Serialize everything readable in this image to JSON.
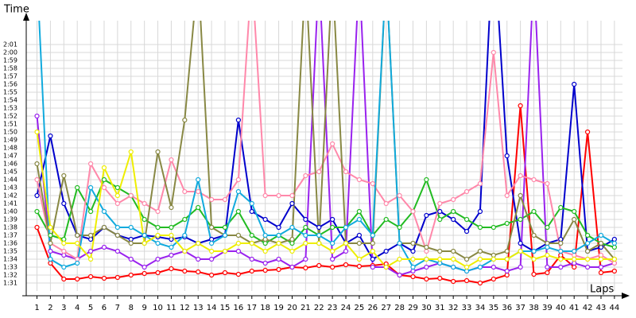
{
  "chart_data": {
    "type": "line",
    "y_label": "Time",
    "x_label": "Laps",
    "x": [
      1,
      2,
      3,
      4,
      5,
      6,
      7,
      8,
      9,
      10,
      11,
      12,
      13,
      14,
      15,
      16,
      17,
      18,
      19,
      20,
      21,
      22,
      23,
      24,
      25,
      26,
      27,
      28,
      29,
      30,
      31,
      32,
      33,
      34,
      35,
      36,
      37,
      38,
      39,
      40,
      41,
      42,
      43,
      44
    ],
    "xticks": [
      1,
      2,
      3,
      4,
      5,
      6,
      7,
      8,
      9,
      10,
      11,
      12,
      13,
      14,
      15,
      16,
      17,
      18,
      19,
      20,
      21,
      22,
      23,
      24,
      25,
      26,
      27,
      28,
      29,
      30,
      31,
      32,
      33,
      34,
      35,
      36,
      37,
      38,
      39,
      40,
      41,
      42,
      43,
      44
    ],
    "xlim": [
      0.2,
      44.6
    ],
    "ylim": [
      90,
      124
    ],
    "yticks": [
      {
        "value": 91,
        "label": "1:31"
      },
      {
        "value": 92,
        "label": "1:32"
      },
      {
        "value": 93,
        "label": "1:33"
      },
      {
        "value": 94,
        "label": "1:34"
      },
      {
        "value": 95,
        "label": "1:35"
      },
      {
        "value": 96,
        "label": "1:36"
      },
      {
        "value": 97,
        "label": "1:37"
      },
      {
        "value": 98,
        "label": "1:38"
      },
      {
        "value": 99,
        "label": "1:39"
      },
      {
        "value": 100,
        "label": "1:40"
      },
      {
        "value": 101,
        "label": "1:41"
      },
      {
        "value": 102,
        "label": "1:42"
      },
      {
        "value": 103,
        "label": "1:43"
      },
      {
        "value": 104,
        "label": "1:44"
      },
      {
        "value": 105,
        "label": "1:45"
      },
      {
        "value": 106,
        "label": "1:46"
      },
      {
        "value": 107,
        "label": "1:47"
      },
      {
        "value": 108,
        "label": "1:48"
      },
      {
        "value": 109,
        "label": "1:49"
      },
      {
        "value": 110,
        "label": "1:50"
      },
      {
        "value": 111,
        "label": "1:51"
      },
      {
        "value": 112,
        "label": "1:52"
      },
      {
        "value": 113,
        "label": "1:53"
      },
      {
        "value": 114,
        "label": "1:54"
      },
      {
        "value": 115,
        "label": "1:55"
      },
      {
        "value": 116,
        "label": "1:56"
      },
      {
        "value": 117,
        "label": "1:57"
      },
      {
        "value": 118,
        "label": "1:58"
      },
      {
        "value": 119,
        "label": "1:59"
      },
      {
        "value": 120,
        "label": "2:00"
      },
      {
        "value": 121,
        "label": "2:01"
      }
    ],
    "grid": true,
    "series": [
      {
        "color": "#ff0000",
        "values": [
          98,
          93.5,
          91.5,
          91.5,
          91.8,
          91.6,
          91.7,
          92,
          92.2,
          92.3,
          92.8,
          92.5,
          92.4,
          92,
          92.3,
          92.1,
          92.5,
          92.6,
          92.7,
          93,
          92.9,
          93.2,
          93,
          93.3,
          93.1,
          93.2,
          93.4,
          92,
          91.8,
          91.5,
          91.6,
          91.2,
          91.3,
          91,
          91.5,
          92,
          113.3,
          92.1,
          92.3,
          94.5,
          93,
          110,
          92.3,
          92.5
        ]
      },
      {
        "color": "#0000cc",
        "values": [
          102,
          109.5,
          101,
          97,
          96.5,
          98,
          97,
          96.5,
          97,
          96.8,
          96.5,
          96.8,
          96,
          96.5,
          97,
          111.5,
          100,
          99,
          98,
          101,
          99,
          98,
          99,
          96,
          97,
          94,
          95,
          96,
          95,
          99.5,
          100,
          99,
          97.5,
          100,
          135,
          107,
          96,
          95,
          96,
          96.5,
          116,
          95,
          95.5,
          96.5
        ]
      },
      {
        "color": "#22bb22",
        "values": [
          100,
          97,
          96.5,
          103,
          100,
          104,
          103,
          102,
          99,
          98,
          98,
          99,
          100.5,
          98,
          98,
          100,
          97,
          96,
          97,
          96,
          98,
          97,
          98,
          98,
          100,
          97,
          99,
          98,
          100,
          104,
          99,
          100,
          99,
          98,
          98,
          98.5,
          99,
          100,
          98,
          100.5,
          100,
          97,
          96,
          95.5
        ]
      },
      {
        "color": "#9922ee",
        "values": [
          112,
          95,
          94.5,
          94,
          95,
          95.5,
          95,
          94,
          93,
          94,
          94.5,
          95,
          94,
          94,
          95,
          95,
          94,
          93.5,
          94,
          93,
          94,
          130,
          94,
          95,
          130,
          93,
          93,
          92,
          92.5,
          93,
          93.5,
          93,
          92.5,
          93,
          93,
          92.5,
          93,
          130,
          93,
          93,
          93.5,
          93,
          93,
          93.5
        ]
      },
      {
        "color": "#ff88aa",
        "values": [
          104,
          96,
          95,
          94,
          106,
          103,
          101,
          102,
          101,
          100,
          106.5,
          102.5,
          102.5,
          101.5,
          101.5,
          104,
          130,
          102,
          102,
          102,
          104.5,
          105,
          108.5,
          105,
          104,
          103.5,
          101,
          102,
          100,
          95,
          101,
          101.5,
          102.5,
          103.5,
          120,
          102,
          104.5,
          104,
          103.5,
          95,
          94.5,
          94,
          94.5,
          93.5
        ]
      },
      {
        "color": "#888844",
        "values": [
          106,
          96,
          104.5,
          97,
          97,
          98,
          97,
          96,
          96,
          107.5,
          100.5,
          111.5,
          130,
          98,
          97,
          97,
          96,
          96.5,
          96,
          96.5,
          130,
          96,
          130,
          96,
          96,
          96,
          130,
          96,
          96,
          95.5,
          95,
          95,
          94,
          95,
          94.5,
          95,
          102,
          97,
          96,
          96,
          99,
          95,
          96,
          94
        ]
      },
      {
        "color": "#11aadd",
        "values": [
          130,
          94,
          93,
          93.5,
          103,
          100,
          98,
          98,
          97,
          96,
          95.5,
          97,
          104,
          96,
          97,
          102.5,
          101,
          97,
          97,
          98,
          97,
          97,
          96,
          98,
          99,
          97,
          130,
          96,
          93,
          94,
          93.5,
          93,
          92.5,
          93,
          94,
          94,
          95,
          95,
          95.5,
          95,
          95,
          96,
          97,
          96
        ]
      },
      {
        "color": "#eeee00",
        "values": [
          110,
          98,
          96,
          96,
          94,
          105.5,
          102,
          107.5,
          96,
          97,
          97,
          95,
          96,
          95,
          95,
          96,
          96,
          95,
          96,
          95,
          96,
          96,
          95,
          96,
          94,
          95,
          93,
          94,
          94,
          94,
          94,
          94,
          93,
          94,
          94,
          94,
          95,
          94,
          94.5,
          94,
          94,
          94,
          94,
          94
        ]
      }
    ]
  }
}
